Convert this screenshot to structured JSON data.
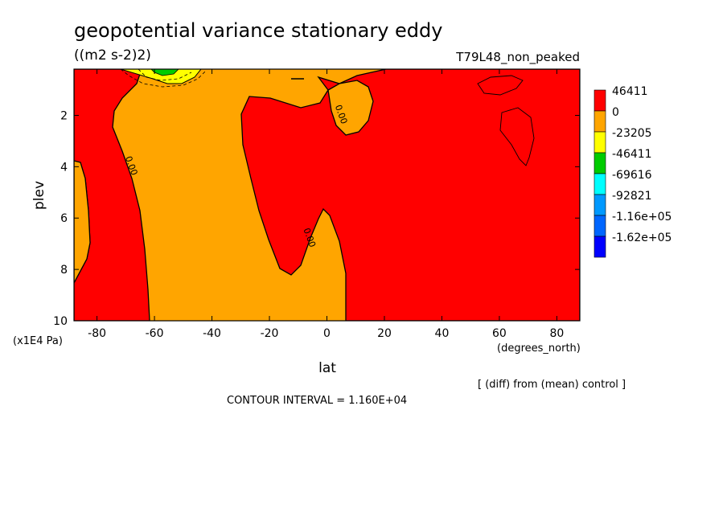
{
  "chart_data": {
    "type": "contour",
    "title": "geopotential variance stationary eddy",
    "units": "((m2 s-2)2)",
    "run_label": "T79L48_non_peaked",
    "xlabel": "lat",
    "xunits": "(degrees_north)",
    "ylabel": "plev",
    "yunits": "(x1E4 Pa)",
    "xlim": [
      -88,
      88
    ],
    "ylim": [
      10,
      0.2
    ],
    "x_ticks": [
      -80,
      -60,
      -40,
      -20,
      0,
      20,
      40,
      60,
      80
    ],
    "x_tick_labels": [
      "-80",
      "-60",
      "-40",
      "-20",
      "0",
      "20",
      "40",
      "60",
      "80"
    ],
    "y_ticks": [
      2,
      4,
      6,
      8,
      10
    ],
    "y_tick_labels": [
      "2",
      "4",
      "6",
      "8",
      "10"
    ],
    "contour_interval_text": "CONTOUR INTERVAL = 1.160E+04",
    "diff_note": "[ (diff) from (mean) control ]",
    "legend": [
      {
        "label": "46411",
        "color": "#ff0000"
      },
      {
        "label": "0",
        "color": "#ffa500"
      },
      {
        "label": "-23205",
        "color": "#ffff00"
      },
      {
        "label": "-46411",
        "color": "#00cc00"
      },
      {
        "label": "-69616",
        "color": "#00ffff"
      },
      {
        "label": "-92821",
        "color": "#0099ff"
      },
      {
        "label": "-1.16e+05",
        "color": "#0066ff"
      },
      {
        "label": "-1.62e+05",
        "color": "#0000ff"
      }
    ],
    "contour_labels": [
      {
        "text": "0.00",
        "lat": -69,
        "plev": 4.0
      },
      {
        "text": "0.00",
        "lat": 4,
        "plev": 2.0
      },
      {
        "text": "0.00",
        "lat": -7,
        "plev": 6.8
      }
    ]
  }
}
